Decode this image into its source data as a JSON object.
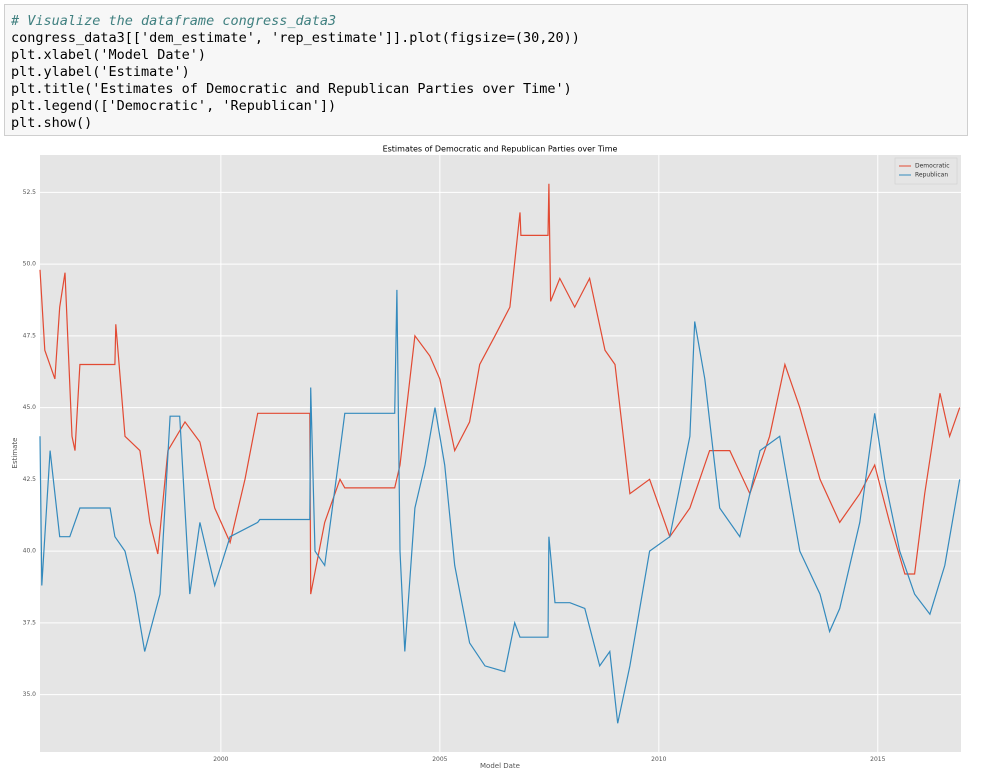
{
  "code_cell": {
    "lines": [
      "# Visualize the dataframe congress_data3",
      "congress_data3[['dem_estimate', 'rep_estimate']].plot(figsize=(30,20))",
      "plt.xlabel('Model Date')",
      "plt.ylabel('Estimate')",
      "plt.title('Estimates of Democratic and Republican Parties over Time')",
      "plt.legend(['Democratic', 'Republican'])",
      "plt.show()"
    ]
  },
  "chart_data": {
    "type": "line",
    "title": "Estimates of Democratic and Republican Parties over Time",
    "x_label": "Model Date",
    "y_label": "Estimate",
    "xlim": [
      1995.87,
      2016.9
    ],
    "xticks": [
      2000,
      2005,
      2010,
      2015
    ],
    "ylim": [
      33.0,
      53.8
    ],
    "yticks": [
      {
        "value": 35,
        "label": "35.0"
      },
      {
        "value": 37.5,
        "label": "37.5"
      },
      {
        "value": 40,
        "label": "40.0"
      },
      {
        "value": 42.5,
        "label": "42.5"
      },
      {
        "value": 45,
        "label": "45.0"
      },
      {
        "value": 47.5,
        "label": "47.5"
      },
      {
        "value": 50,
        "label": "50.0"
      },
      {
        "value": 52.5,
        "label": "52.5"
      }
    ],
    "grid": true,
    "legend": "upper right",
    "series": [
      {
        "name": "Democratic",
        "color": "#e24a33",
        "x": [
          1995.87,
          1995.98,
          1996.21,
          1996.32,
          1996.44,
          1996.6,
          1996.67,
          1996.78,
          1997.58,
          1997.6,
          1997.81,
          1998.15,
          1998.38,
          1998.56,
          1998.79,
          1999.18,
          1999.52,
          1999.86,
          2000.21,
          2000.55,
          2000.84,
          2002.03,
          2002.05,
          2002.37,
          2002.72,
          2002.83,
          2003.97,
          2004.09,
          2004.43,
          2004.77,
          2005.0,
          2005.34,
          2005.68,
          2005.91,
          2006.26,
          2006.6,
          2006.83,
          2006.85,
          2007.47,
          2007.49,
          2007.53,
          2007.74,
          2008.08,
          2008.42,
          2008.77,
          2009.0,
          2009.34,
          2009.79,
          2010.25,
          2010.71,
          2011.16,
          2011.62,
          2012.08,
          2012.53,
          2012.88,
          2013.22,
          2013.68,
          2014.13,
          2014.59,
          2014.93,
          2015.27,
          2015.62,
          2015.84,
          2016.07,
          2016.42,
          2016.64,
          2016.87
        ],
        "values": [
          49.8,
          47.0,
          46.0,
          48.5,
          49.7,
          44.0,
          43.5,
          46.5,
          46.5,
          47.9,
          44.0,
          43.5,
          41.0,
          39.9,
          43.5,
          44.5,
          43.8,
          41.5,
          40.3,
          42.5,
          44.8,
          44.8,
          38.5,
          41.0,
          42.5,
          42.2,
          42.2,
          43.0,
          47.5,
          46.8,
          46.0,
          43.5,
          44.5,
          46.5,
          47.5,
          48.5,
          51.8,
          51.0,
          51.0,
          52.8,
          48.7,
          49.5,
          48.5,
          49.5,
          47.0,
          46.5,
          42.0,
          42.5,
          40.5,
          41.5,
          43.5,
          43.5,
          42.0,
          44.0,
          46.5,
          45.0,
          42.5,
          41.0,
          42.0,
          43.0,
          41.0,
          39.2,
          39.2,
          42.0,
          45.5,
          44.0,
          45.0
        ]
      },
      {
        "name": "Republican",
        "color": "#348abd",
        "x": [
          1995.87,
          1995.91,
          1996.1,
          1996.32,
          1996.55,
          1996.78,
          1997.47,
          1997.58,
          1997.81,
          1998.04,
          1998.26,
          1998.61,
          1998.84,
          1999.06,
          1999.29,
          1999.52,
          1999.86,
          2000.21,
          2000.84,
          2000.89,
          2002.03,
          2002.05,
          2002.15,
          2002.37,
          2002.72,
          2002.83,
          2003.97,
          2004.02,
          2004.09,
          2004.2,
          2004.43,
          2004.66,
          2004.89,
          2005.11,
          2005.34,
          2005.68,
          2006.03,
          2006.48,
          2006.71,
          2006.83,
          2007.47,
          2007.49,
          2007.63,
          2007.97,
          2008.31,
          2008.65,
          2008.88,
          2009.06,
          2009.34,
          2009.79,
          2010.25,
          2010.71,
          2010.82,
          2011.05,
          2011.39,
          2011.85,
          2012.31,
          2012.76,
          2013.22,
          2013.68,
          2013.9,
          2014.13,
          2014.59,
          2014.93,
          2015.16,
          2015.5,
          2015.84,
          2016.19,
          2016.53,
          2016.87
        ],
        "values": [
          44.0,
          38.8,
          43.5,
          40.5,
          40.5,
          41.5,
          41.5,
          40.5,
          40.0,
          38.5,
          36.5,
          38.5,
          44.7,
          44.7,
          38.5,
          41.0,
          38.8,
          40.5,
          41.0,
          41.1,
          41.1,
          45.7,
          40.0,
          39.5,
          43.5,
          44.8,
          44.8,
          49.1,
          40.0,
          36.5,
          41.5,
          43.0,
          45.0,
          43.0,
          39.5,
          36.8,
          36.0,
          35.8,
          37.5,
          37.0,
          37.0,
          40.5,
          38.2,
          38.2,
          38.0,
          36.0,
          36.5,
          34.0,
          36.0,
          40.0,
          40.5,
          44.0,
          48.0,
          46.0,
          41.5,
          40.5,
          43.5,
          44.0,
          40.0,
          38.5,
          37.2,
          38.0,
          41.0,
          44.8,
          42.5,
          40.0,
          38.5,
          37.8,
          39.5,
          42.5
        ]
      }
    ]
  }
}
